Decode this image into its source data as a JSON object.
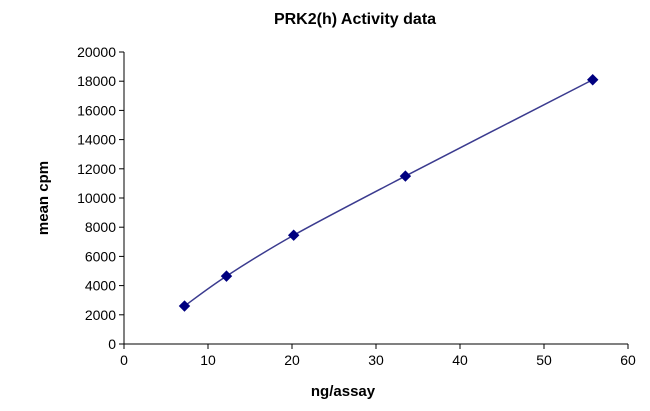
{
  "chart_data": {
    "type": "scatter",
    "title": "PRK2(h) Activity data",
    "xlabel": "ng/assay",
    "ylabel": "mean cpm",
    "xlim": [
      0,
      60
    ],
    "ylim": [
      0,
      20000
    ],
    "x_ticks": [
      0,
      10,
      20,
      30,
      40,
      50,
      60
    ],
    "y_ticks": [
      0,
      2000,
      4000,
      6000,
      8000,
      10000,
      12000,
      14000,
      16000,
      18000,
      20000
    ],
    "grid": false,
    "legend": "none",
    "series": [
      {
        "marker": "diamond",
        "line": "smooth",
        "color": "#000080",
        "line_color": "#3b3b8f",
        "points": [
          {
            "x": 7.2,
            "y": 2600
          },
          {
            "x": 12.2,
            "y": 4650
          },
          {
            "x": 20.2,
            "y": 7450
          },
          {
            "x": 33.5,
            "y": 11500
          },
          {
            "x": 55.8,
            "y": 18100
          }
        ]
      }
    ]
  }
}
